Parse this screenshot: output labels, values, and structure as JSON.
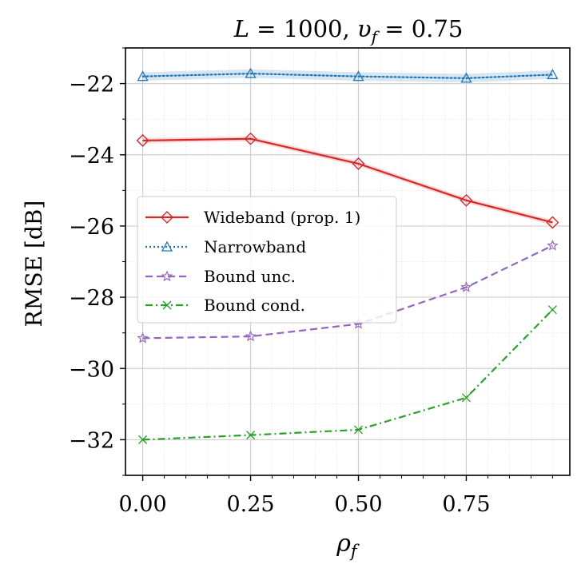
{
  "chart_data": {
    "type": "line",
    "title": "L = 1000, υ_f = 0.75",
    "title_parts": {
      "a": "L",
      "b": " = 1000, ",
      "c": "υ",
      "d": "f",
      "e": " = 0.75"
    },
    "xlabel": "ρ",
    "xlabel_sub": "f",
    "ylabel": "RMSE [dB]",
    "xlim": [
      -0.04,
      0.99
    ],
    "ylim": [
      -33.0,
      -21.0
    ],
    "xticks": [
      0.0,
      0.25,
      0.5,
      0.75
    ],
    "xtick_labels": [
      "0.00",
      "0.25",
      "0.50",
      "0.75"
    ],
    "yticks": [
      -32,
      -30,
      -28,
      -26,
      -24,
      -22
    ],
    "ytick_labels": [
      "−32",
      "−30",
      "−28",
      "−26",
      "−24",
      "−22"
    ],
    "grid": true,
    "legend_position": "center-left",
    "series": [
      {
        "name": "Wideband (prop. 1)",
        "color": "#d62728",
        "marker": "diamond",
        "linestyle": "solid",
        "x": [
          0.0,
          0.25,
          0.5,
          0.75,
          0.95
        ],
        "values": [
          -23.6,
          -23.55,
          -24.25,
          -25.28,
          -25.9
        ],
        "band": 0.07
      },
      {
        "name": "Narrowband",
        "color": "#1f77b4",
        "marker": "triangle",
        "linestyle": "dotted",
        "x": [
          0.0,
          0.25,
          0.5,
          0.75,
          0.95
        ],
        "values": [
          -21.8,
          -21.72,
          -21.8,
          -21.85,
          -21.75
        ],
        "band": 0.12
      },
      {
        "name": "Bound unc.",
        "color": "#9467bd",
        "marker": "star",
        "linestyle": "dashed",
        "x": [
          0.0,
          0.25,
          0.5,
          0.75,
          0.95
        ],
        "values": [
          -29.15,
          -29.1,
          -28.75,
          -27.72,
          -26.55
        ],
        "band": 0
      },
      {
        "name": "Bound cond.",
        "color": "#2ca02c",
        "marker": "x",
        "linestyle": "dashdot",
        "x": [
          0.0,
          0.25,
          0.5,
          0.75,
          0.95
        ],
        "values": [
          -32.0,
          -31.87,
          -31.72,
          -30.82,
          -28.35
        ],
        "band": 0
      }
    ]
  }
}
